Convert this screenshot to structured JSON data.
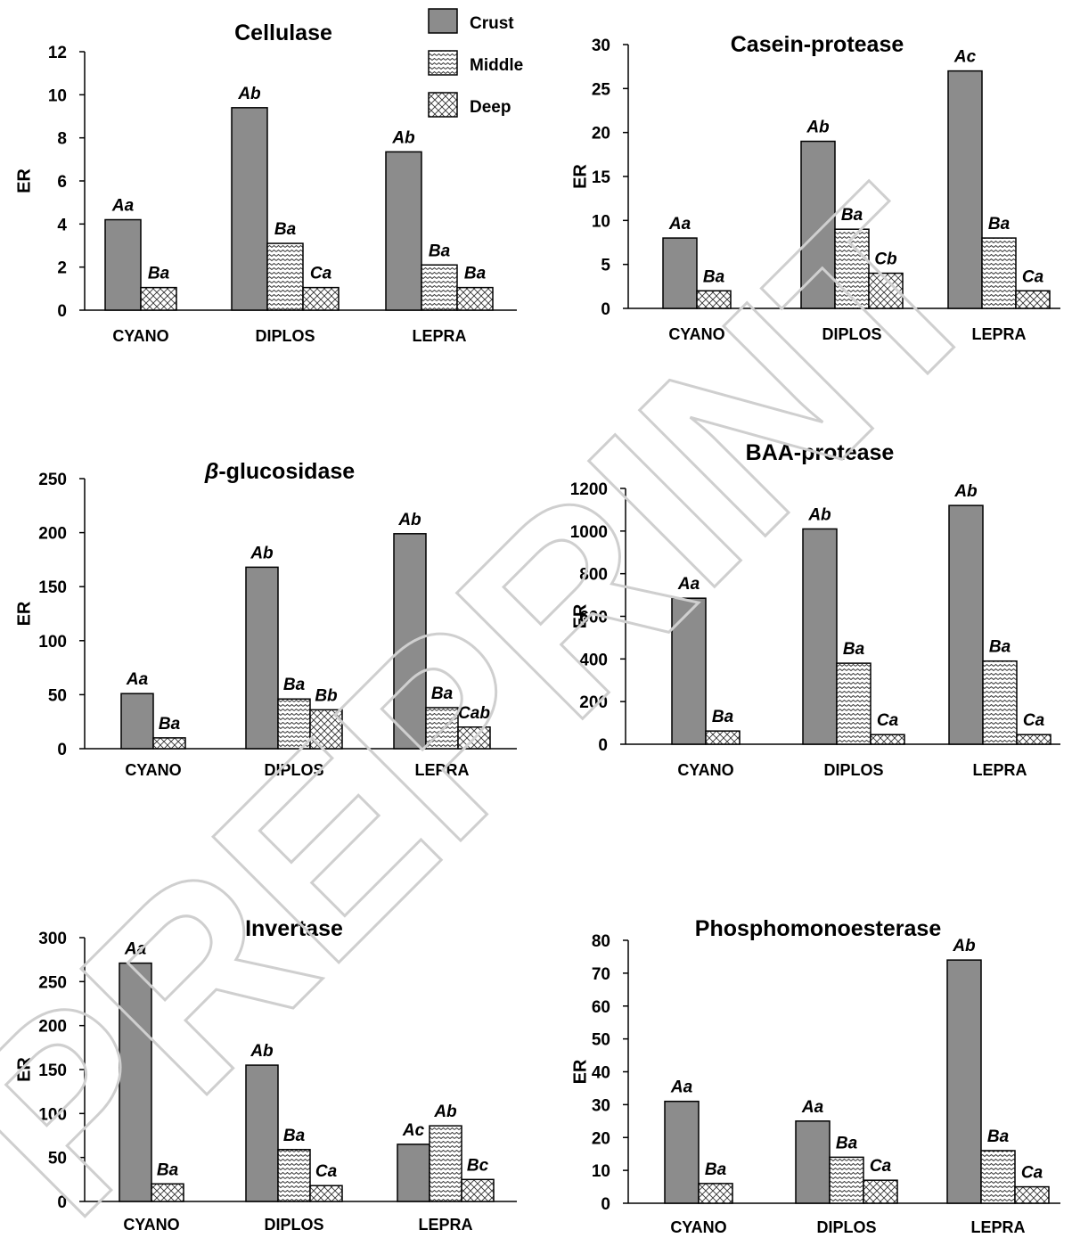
{
  "legend": {
    "placement": "top-center",
    "entries": [
      {
        "label": "Crust",
        "pattern": "solid-gray"
      },
      {
        "label": "Middle",
        "pattern": "wavy-hatch"
      },
      {
        "label": "Deep",
        "pattern": "cross-hatch"
      }
    ]
  },
  "watermark": "PREPRINT",
  "colors": {
    "crust": "#8c8c8c",
    "hatch_bg": "#ffffff",
    "hatch_line": "#333333",
    "axis": "#000000",
    "watermark": "#d0d0d0"
  },
  "chart_data": [
    {
      "type": "bar",
      "title": "Cellulase",
      "ylabel": "ER",
      "xlabel": "",
      "categories": [
        "CYANO",
        "DIPLOS",
        "LEPRA"
      ],
      "ylim": [
        0,
        12
      ],
      "yticks": [
        0,
        2,
        4,
        6,
        8,
        10,
        12
      ],
      "series": [
        {
          "name": "Crust",
          "values": [
            4.2,
            9.4,
            7.35
          ],
          "labels": [
            "Aa",
            "Ab",
            "Ab"
          ]
        },
        {
          "name": "Middle",
          "values": [
            null,
            3.1,
            2.1
          ],
          "labels": [
            null,
            "Ba",
            "Ba"
          ]
        },
        {
          "name": "Deep",
          "values": [
            1.05,
            1.05,
            1.05
          ],
          "labels": [
            "Ba",
            "Ca",
            "Ba"
          ]
        }
      ],
      "grid": false
    },
    {
      "type": "bar",
      "title": "Casein-protease",
      "ylabel": "ER",
      "xlabel": "",
      "categories": [
        "CYANO",
        "DIPLOS",
        "LEPRA"
      ],
      "ylim": [
        0,
        30
      ],
      "yticks": [
        0,
        5,
        10,
        15,
        20,
        25,
        30
      ],
      "series": [
        {
          "name": "Crust",
          "values": [
            8,
            19,
            27
          ],
          "labels": [
            "Aa",
            "Ab",
            "Ac"
          ]
        },
        {
          "name": "Middle",
          "values": [
            null,
            9,
            8
          ],
          "labels": [
            null,
            "Ba",
            "Ba"
          ]
        },
        {
          "name": "Deep",
          "values": [
            2,
            4,
            2
          ],
          "labels": [
            "Ba",
            "Cb",
            "Ca"
          ]
        }
      ],
      "grid": false
    },
    {
      "type": "bar",
      "title_prefix": "β",
      "title": "-glucosidase",
      "ylabel": "ER",
      "xlabel": "",
      "categories": [
        "CYANO",
        "DIPLOS",
        "LEPRA"
      ],
      "ylim": [
        0,
        250
      ],
      "yticks": [
        0,
        50,
        100,
        150,
        200,
        250
      ],
      "series": [
        {
          "name": "Crust",
          "values": [
            51,
            168,
            199
          ],
          "labels": [
            "Aa",
            "Ab",
            "Ab"
          ]
        },
        {
          "name": "Middle",
          "values": [
            null,
            46,
            38
          ],
          "labels": [
            null,
            "Ba",
            "Ba"
          ]
        },
        {
          "name": "Deep",
          "values": [
            10,
            36,
            20
          ],
          "labels": [
            "Ba",
            "Bb",
            "Cab"
          ]
        }
      ],
      "grid": false
    },
    {
      "type": "bar",
      "title": "BAA-protease",
      "ylabel": "ER",
      "xlabel": "",
      "categories": [
        "CYANO",
        "DIPLOS",
        "LEPRA"
      ],
      "ylim": [
        0,
        1200
      ],
      "yticks": [
        0,
        200,
        400,
        600,
        800,
        1000,
        1200
      ],
      "series": [
        {
          "name": "Crust",
          "values": [
            685,
            1010,
            1120
          ],
          "labels": [
            "Aa",
            "Ab",
            "Ab"
          ]
        },
        {
          "name": "Middle",
          "values": [
            null,
            380,
            390
          ],
          "labels": [
            null,
            "Ba",
            "Ba"
          ]
        },
        {
          "name": "Deep",
          "values": [
            62,
            45,
            45
          ],
          "labels": [
            "Ba",
            "Ca",
            "Ca"
          ]
        }
      ],
      "grid": false
    },
    {
      "type": "bar",
      "title": "Invertase",
      "ylabel": "ER",
      "xlabel": "",
      "categories": [
        "CYANO",
        "DIPLOS",
        "LEPRA"
      ],
      "ylim": [
        0,
        300
      ],
      "yticks": [
        0,
        50,
        100,
        150,
        200,
        250,
        300
      ],
      "series": [
        {
          "name": "Crust",
          "values": [
            271,
            155,
            65
          ],
          "labels": [
            "Aa",
            "Ab",
            "Ac"
          ]
        },
        {
          "name": "Middle",
          "values": [
            null,
            59,
            86
          ],
          "labels": [
            null,
            "Ba",
            "Ab"
          ]
        },
        {
          "name": "Deep",
          "values": [
            20,
            18,
            25
          ],
          "labels": [
            "Ba",
            "Ca",
            "Bc"
          ]
        }
      ],
      "grid": false
    },
    {
      "type": "bar",
      "title": "Phosphomonoesterase",
      "ylabel": "ER",
      "xlabel": "",
      "categories": [
        "CYANO",
        "DIPLOS",
        "LEPRA"
      ],
      "ylim": [
        0,
        80
      ],
      "yticks": [
        0,
        10,
        20,
        30,
        40,
        50,
        60,
        70,
        80
      ],
      "series": [
        {
          "name": "Crust",
          "values": [
            31,
            25,
            74
          ],
          "labels": [
            "Aa",
            "Aa",
            "Ab"
          ]
        },
        {
          "name": "Middle",
          "values": [
            null,
            14,
            16
          ],
          "labels": [
            null,
            "Ba",
            "Ba"
          ]
        },
        {
          "name": "Deep",
          "values": [
            6,
            7,
            5
          ],
          "labels": [
            "Ba",
            "Ca",
            "Ca"
          ]
        }
      ],
      "grid": false
    }
  ]
}
